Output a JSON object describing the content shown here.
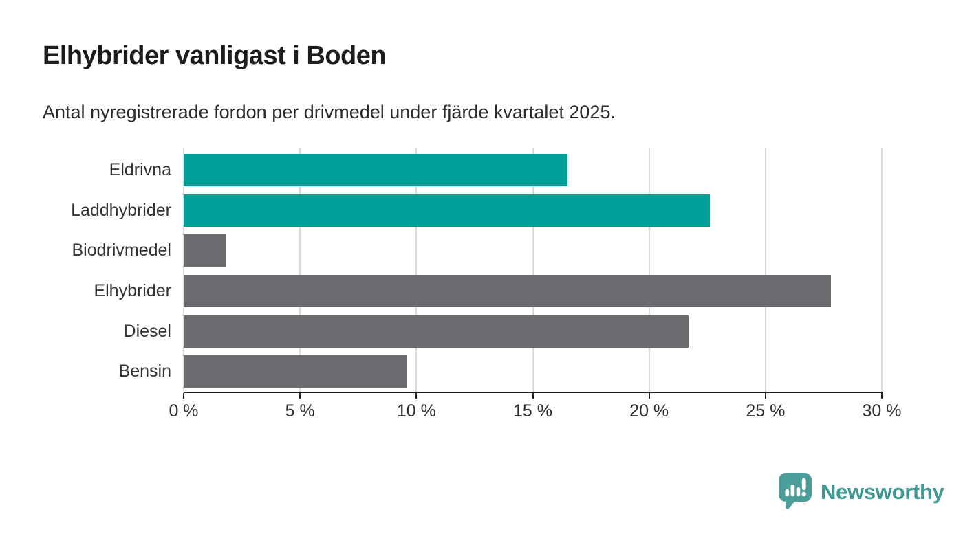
{
  "chart_data": {
    "type": "bar",
    "orientation": "horizontal",
    "title": "Elhybrider vanligast i Boden",
    "subtitle": "Antal nyregistrerade fordon per drivmedel under fjärde kvartalet 2025.",
    "categories": [
      "Eldrivna",
      "Laddhybrider",
      "Biodrivmedel",
      "Elhybrider",
      "Diesel",
      "Bensin"
    ],
    "values": [
      16.5,
      22.6,
      1.8,
      27.8,
      21.7,
      9.6
    ],
    "bar_colors": [
      "#00a099",
      "#00a099",
      "#6c6c70",
      "#6c6c70",
      "#6c6c70",
      "#6c6c70"
    ],
    "highlight_color": "#00a099",
    "default_color": "#6c6c70",
    "xlim": [
      0,
      30
    ],
    "x_ticks": [
      0,
      5,
      10,
      15,
      20,
      25,
      30
    ],
    "x_tick_labels": [
      "0 %",
      "5 %",
      "10 %",
      "15 %",
      "20 %",
      "25 %",
      "30 %"
    ],
    "grid": "vertical",
    "gridline_color": "#dcdcdc",
    "axis_color": "#1f1f1f",
    "legend": "none"
  },
  "branding": {
    "logo_text": "Newsworthy",
    "logo_icon": "newsworthy-speech-bubble-bar-chart-icon",
    "logo_icon_color": "#4c9e9a",
    "logo_text_color": "#3e9894"
  }
}
